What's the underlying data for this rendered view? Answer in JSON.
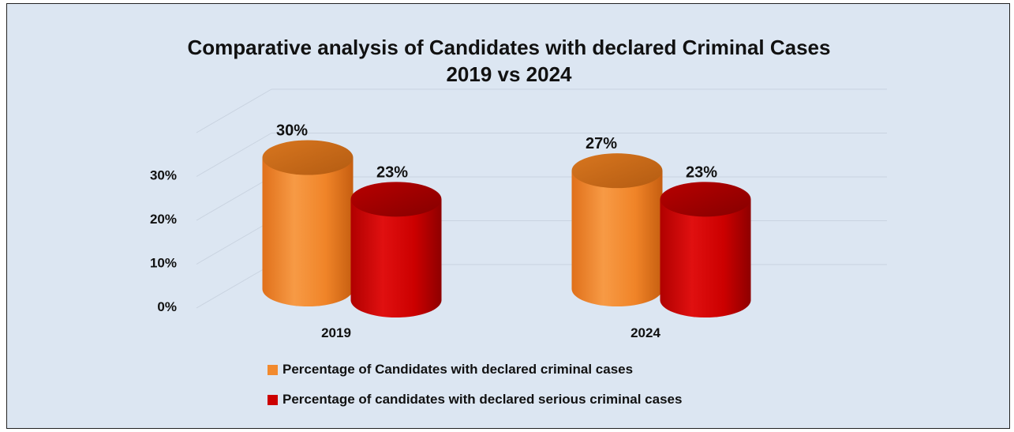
{
  "chart_data": {
    "type": "bar",
    "style": "3d-cylinder",
    "title": "Comparative analysis of Candidates with declared Criminal Cases",
    "subtitle": "2019 vs 2024",
    "categories": [
      "2019",
      "2024"
    ],
    "y_ticks": [
      "0%",
      "10%",
      "20%",
      "30%"
    ],
    "ylim": [
      0,
      40
    ],
    "grid": true,
    "legend_position": "bottom",
    "series": [
      {
        "name": "Percentage of Candidates with declared criminal cases",
        "values": [
          30,
          27
        ],
        "labels": [
          "30%",
          "27%"
        ],
        "color": "#f28a2e"
      },
      {
        "name": "Percentage of candidates with declared serious criminal cases",
        "values": [
          23,
          23
        ],
        "labels": [
          "23%",
          "23%"
        ],
        "color": "#cc0000"
      }
    ]
  }
}
